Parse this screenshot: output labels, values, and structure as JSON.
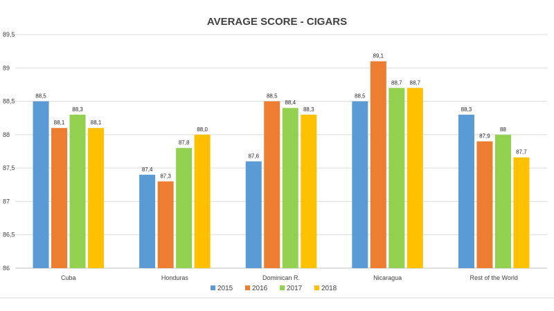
{
  "chart_data": {
    "type": "bar",
    "title": "AVERAGE SCORE - CIGARS",
    "categories": [
      "Cuba",
      "Honduras",
      "Dominican R.",
      "Nicaragua",
      "Rest of the World"
    ],
    "series": [
      {
        "name": "2015",
        "color": "#5b9bd5",
        "values": [
          88.5,
          87.4,
          87.6,
          88.5,
          88.3
        ],
        "labels": [
          "88,5",
          "87,4",
          "87,6",
          "88,5",
          "88,3"
        ]
      },
      {
        "name": "2016",
        "color": "#ed7d31",
        "values": [
          88.1,
          87.3,
          88.5,
          89.1,
          87.9
        ],
        "labels": [
          "88,1",
          "87,3",
          "88,5",
          "89,1",
          "87,9"
        ]
      },
      {
        "name": "2017",
        "color": "#92d050",
        "values": [
          88.3,
          87.8,
          88.4,
          88.7,
          88.0
        ],
        "labels": [
          "88,3",
          "87,8",
          "88,4",
          "88,7",
          "88"
        ]
      },
      {
        "name": "2018",
        "color": "#ffc000",
        "values": [
          88.1,
          88.0,
          88.3,
          88.7,
          87.66
        ],
        "labels": [
          "88,1",
          "88,0",
          "88,3",
          "88,7",
          "87,7"
        ]
      }
    ],
    "ylim": [
      86,
      89.5
    ],
    "yticks": [
      86,
      86.5,
      87,
      87.5,
      88,
      88.5,
      89,
      89.5
    ],
    "ytick_labels": [
      "86",
      "86,5",
      "87",
      "87,5",
      "88",
      "88,5",
      "89",
      "89,5"
    ],
    "grid": true,
    "legend_position": "bottom"
  }
}
